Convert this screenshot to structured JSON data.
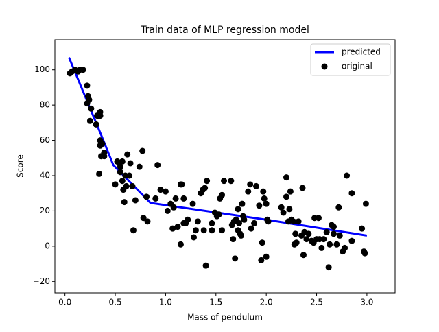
{
  "chart_data": {
    "type": "combo",
    "title": "Train data of MLP regression model",
    "xlabel": "Mass of pendulum",
    "ylabel": "Score",
    "xlim": [
      -0.1,
      3.28
    ],
    "ylim": [
      -26.5,
      117
    ],
    "xticks": [
      {
        "value": 0,
        "label": "0.0"
      },
      0.5,
      {
        "value": 1,
        "label": "1.0"
      },
      1.5,
      {
        "value": 2,
        "label": "2.0"
      },
      2.5,
      {
        "value": 3,
        "label": "3.0"
      }
    ],
    "yticks": [
      {
        "value": -20,
        "label": "−20"
      },
      0,
      20,
      40,
      60,
      80,
      100
    ],
    "grid": false,
    "legend": "upper right",
    "series": [
      {
        "name": "predicted",
        "type": "line",
        "color": "#0000ff",
        "x": [
          0.04,
          0.36,
          0.48,
          0.85,
          2.0,
          3.0
        ],
        "values": [
          107,
          63,
          46,
          24.5,
          15,
          6
        ]
      },
      {
        "name": "original",
        "type": "scatter",
        "color": "#000000",
        "x": [
          0.05,
          0.07,
          0.1,
          0.13,
          0.15,
          0.18,
          0.22,
          0.23,
          0.24,
          0.22,
          0.26,
          0.25,
          0.32,
          0.33,
          0.35,
          0.35,
          0.31,
          0.35,
          0.37,
          0.35,
          0.39,
          0.36,
          0.39,
          0.34,
          0.5,
          0.52,
          0.54,
          0.55,
          0.57,
          0.55,
          0.57,
          0.6,
          0.58,
          0.61,
          0.59,
          0.62,
          0.64,
          0.65,
          0.67,
          0.7,
          0.68,
          0.74,
          0.77,
          0.78,
          0.82,
          0.81,
          0.9,
          0.92,
          0.95,
          1.0,
          1.02,
          1.05,
          1.07,
          1.08,
          1.12,
          1.1,
          1.15,
          1.16,
          1.15,
          1.18,
          1.18,
          1.22,
          1.2,
          1.27,
          1.28,
          1.3,
          1.32,
          1.35,
          1.37,
          1.38,
          1.39,
          1.4,
          1.41,
          1.46,
          1.46,
          1.49,
          1.51,
          1.53,
          1.54,
          1.56,
          1.58,
          1.56,
          1.65,
          1.66,
          1.67,
          1.68,
          1.69,
          1.7,
          1.72,
          1.72,
          1.73,
          1.74,
          1.75,
          1.76,
          1.77,
          1.78,
          1.82,
          1.84,
          1.85,
          1.88,
          1.9,
          1.93,
          1.95,
          1.96,
          1.97,
          1.98,
          2.0,
          2.0,
          2.01,
          2.02,
          2.15,
          2.17,
          2.2,
          2.2,
          2.22,
          2.23,
          2.24,
          2.25,
          2.27,
          2.28,
          2.29,
          2.3,
          2.32,
          2.35,
          2.36,
          2.37,
          2.38,
          2.4,
          2.42,
          2.45,
          2.47,
          2.48,
          2.5,
          2.52,
          2.53,
          2.55,
          2.57,
          2.6,
          2.62,
          2.63,
          2.65,
          2.67,
          2.67,
          2.7,
          2.72,
          2.73,
          2.76,
          2.78,
          2.8,
          2.85,
          2.85,
          2.95,
          2.97,
          2.98,
          2.99
        ],
        "values": [
          98,
          99,
          100,
          99,
          100,
          100,
          91,
          85,
          83,
          81,
          78,
          71,
          74,
          74,
          76,
          74,
          69,
          60,
          58,
          57,
          53,
          51,
          51,
          41,
          35,
          48,
          47,
          45,
          48,
          42,
          37,
          40,
          32,
          34,
          25,
          52,
          40,
          47,
          34,
          26,
          9,
          45,
          54,
          16,
          14,
          28,
          27,
          46,
          32,
          31,
          20,
          24,
          10,
          22,
          11,
          27,
          35,
          35,
          1,
          27,
          13,
          15,
          13,
          24,
          5,
          9,
          14,
          30,
          32,
          9,
          33,
          -11,
          37,
          13,
          9,
          19,
          17,
          18,
          27,
          29,
          37,
          9,
          37,
          12,
          4,
          14,
          -7,
          15,
          9,
          21,
          13,
          7,
          6,
          24,
          17,
          15,
          31,
          35,
          10,
          13,
          34,
          23,
          -8,
          2,
          31,
          27,
          -6,
          24,
          15,
          14,
          22,
          19,
          39,
          28,
          14,
          21,
          31,
          15,
          14,
          1,
          7,
          2,
          14,
          6,
          33,
          -5,
          8,
          4,
          7,
          3,
          2,
          16,
          4,
          16,
          4,
          -1,
          4,
          8,
          -12,
          1,
          12,
          11,
          7,
          1,
          22,
          6,
          -3,
          -1,
          40,
          30,
          3,
          10,
          -3,
          -4,
          24
        ]
      }
    ]
  }
}
